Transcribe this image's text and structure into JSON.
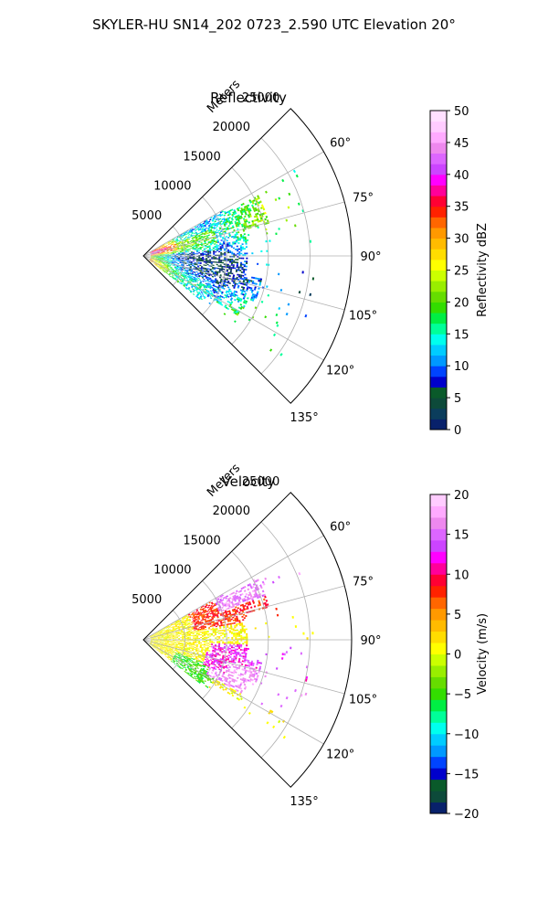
{
  "figure": {
    "suptitle": "SKYLER-HU  SN14_202  0723_2.590 UTC Elevation 20°"
  },
  "chart_data": [
    {
      "type": "polar-sector",
      "title": "Reflectivity",
      "radial_label": "Meters",
      "r_ticks": [
        5000,
        10000,
        15000,
        20000,
        25000
      ],
      "r_tick_labels": [
        "5000",
        "10000",
        "15000",
        "20000",
        "25000"
      ],
      "theta_ticks": [
        60,
        75,
        90,
        105,
        120,
        135
      ],
      "theta_tick_labels": [
        "60°",
        "75°",
        "90°",
        "105°",
        "120°",
        "135°"
      ],
      "theta_range_deg": [
        45,
        135
      ],
      "r_max": 25000,
      "grid": true,
      "colorbar": {
        "label": "Reflectivity dBZ",
        "range": [
          0,
          50
        ],
        "ticks": [
          0,
          5,
          10,
          15,
          20,
          25,
          30,
          35,
          40,
          45,
          50
        ],
        "tick_labels": [
          "0",
          "5",
          "10",
          "15",
          "20",
          "25",
          "30",
          "35",
          "40",
          "45",
          "50"
        ]
      },
      "field_summary": {
        "r_extent_max": 20000,
        "typical_range": [
          10,
          25
        ],
        "max_near_radar": 35
      }
    },
    {
      "type": "polar-sector",
      "title": "Velocity",
      "radial_label": "Meters",
      "r_ticks": [
        5000,
        10000,
        15000,
        20000,
        25000
      ],
      "r_tick_labels": [
        "5000",
        "10000",
        "15000",
        "20000",
        "25000"
      ],
      "theta_ticks": [
        60,
        75,
        90,
        105,
        120,
        135
      ],
      "theta_tick_labels": [
        "60°",
        "75°",
        "90°",
        "105°",
        "120°",
        "135°"
      ],
      "theta_range_deg": [
        45,
        135
      ],
      "r_max": 25000,
      "grid": true,
      "colorbar": {
        "label": "Velocity (m/s)",
        "range": [
          -20,
          20
        ],
        "ticks": [
          -20,
          -15,
          -10,
          -5,
          0,
          5,
          10,
          15,
          20
        ],
        "tick_labels": [
          "−20",
          "−15",
          "−10",
          "−5",
          "0",
          "5",
          "10",
          "15",
          "20"
        ]
      },
      "field_summary": {
        "r_extent_max": 20000,
        "near_radar": 0,
        "north_far": 10,
        "south_far": 15
      }
    }
  ],
  "colors": {
    "reflectivity_scale": [
      "#08216b",
      "#0b3d5c",
      "#0d4a3a",
      "#0a5a2a",
      "#0000cc",
      "#0044ff",
      "#0099ff",
      "#00ccff",
      "#00ffee",
      "#00ff99",
      "#00ee44",
      "#33dd00",
      "#66dd00",
      "#99ee00",
      "#ccff00",
      "#ffff00",
      "#ffdd00",
      "#ffbb00",
      "#ff9900",
      "#ff6600",
      "#ff2200",
      "#ff0033",
      "#ff0099",
      "#ff00ff",
      "#cc44ff",
      "#dd66ff",
      "#ee88ee",
      "#ffaaff",
      "#ffccff",
      "#ffe0ff"
    ],
    "velocity_scale": [
      "#08216b",
      "#0d4a3a",
      "#0a5a2a",
      "#0000cc",
      "#0044ff",
      "#0099ff",
      "#00ccff",
      "#00ffee",
      "#00ff99",
      "#00ee44",
      "#33dd00",
      "#66dd00",
      "#99ee00",
      "#ccff00",
      "#ffff00",
      "#ffdd00",
      "#ffbb00",
      "#ff9900",
      "#ff6600",
      "#ff2200",
      "#ff0033",
      "#ff0099",
      "#ff00ff",
      "#cc44ff",
      "#dd66ff",
      "#ee88ee",
      "#ffaaff",
      "#ffccff"
    ]
  }
}
